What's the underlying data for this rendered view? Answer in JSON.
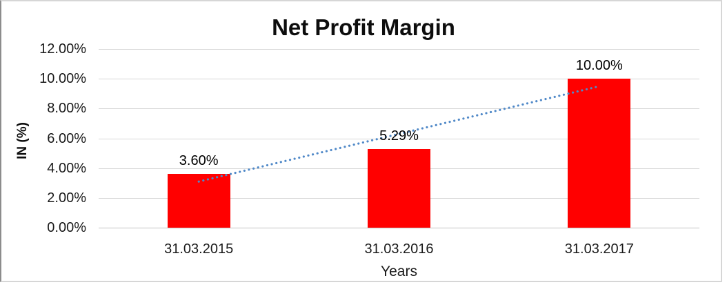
{
  "chart_data": {
    "type": "bar",
    "title": "Net Profit Margin",
    "xlabel": "Years",
    "ylabel": "IN (%)",
    "categories": [
      "31.03.2015",
      "31.03.2016",
      "31.03.2017"
    ],
    "values": [
      3.6,
      5.29,
      10.0
    ],
    "data_labels": [
      "3.60%",
      "5.29%",
      "10.00%"
    ],
    "y_ticks": [
      "12.00%",
      "10.00%",
      "8.00%",
      "6.00%",
      "4.00%",
      "2.00%",
      "0.00%"
    ],
    "ylim": [
      0,
      12
    ],
    "y_tick_step": 2,
    "grid": true,
    "legend_position": "none",
    "bar_color": "#ff0000",
    "gridline_color": "#d6d6d6",
    "text_color": "#1a1a1a",
    "trendline": {
      "type": "linear",
      "style": "dotted",
      "color": "#5089c8"
    }
  }
}
